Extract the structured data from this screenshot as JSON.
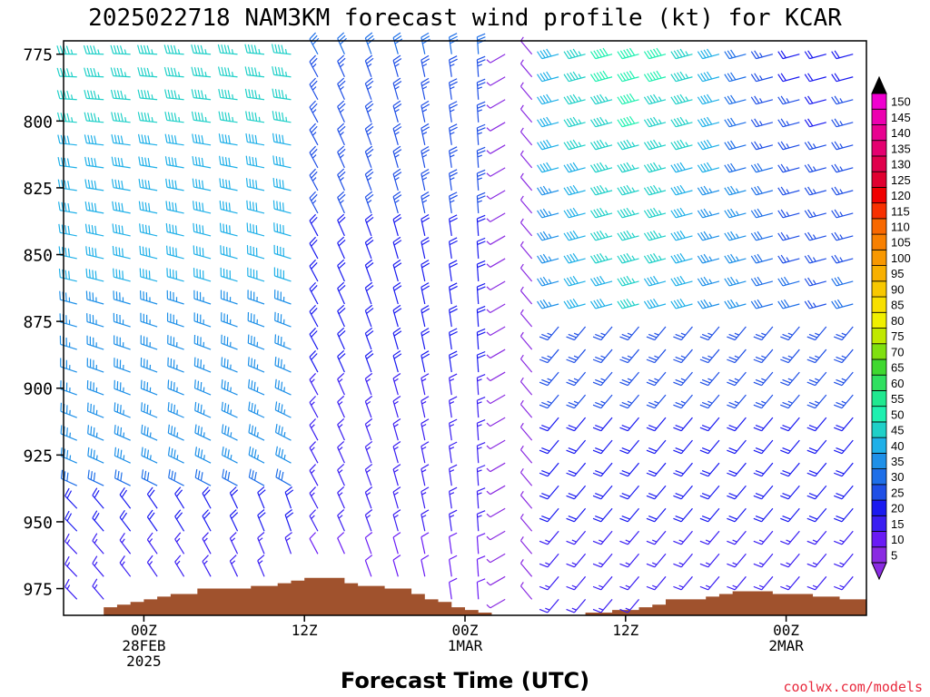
{
  "header": {
    "title": "2025022718 NAM3KM forecast wind profile (kt) for KCAR"
  },
  "footer": {
    "credit": "coolwx.com/models"
  },
  "chart_data": {
    "type": "wind-barb-time-height",
    "title": "2025022718 NAM3KM forecast wind profile (kt) for KCAR",
    "xlabel": "Forecast Time (UTC)",
    "ylabel": "",
    "pressure_levels_hPa": [
      775,
      800,
      825,
      850,
      875,
      900,
      925,
      950,
      975
    ],
    "ylim_hPa": [
      770,
      985
    ],
    "y_scale": "linear-inverted",
    "forecast_hours": [
      0,
      60
    ],
    "x_ticks": [
      {
        "hour": 6,
        "label": "00Z\n28FEB\n2025"
      },
      {
        "hour": 18,
        "label": "12Z"
      },
      {
        "hour": 30,
        "label": "00Z\n1MAR"
      },
      {
        "hour": 42,
        "label": "12Z"
      },
      {
        "hour": 54,
        "label": "00Z\n2MAR"
      }
    ],
    "colorbar": {
      "units": "kt",
      "levels": [
        5,
        10,
        15,
        20,
        25,
        30,
        35,
        40,
        45,
        50,
        55,
        60,
        65,
        70,
        75,
        80,
        85,
        90,
        95,
        100,
        105,
        110,
        115,
        120,
        125,
        130,
        135,
        140,
        145,
        150
      ],
      "colors": [
        "#8a2be2",
        "#6a1bf5",
        "#3a1ef2",
        "#1a1af0",
        "#1f4fe6",
        "#1e6fe8",
        "#1e90e8",
        "#1fb0e8",
        "#1fd0c8",
        "#1ff0b0",
        "#20e890",
        "#30e060",
        "#40d830",
        "#80e010",
        "#c0e800",
        "#f0f000",
        "#f8e000",
        "#f8c800",
        "#f8b000",
        "#f89800",
        "#f88000",
        "#f86800",
        "#f83000",
        "#f00000",
        "#e00030",
        "#e0004c",
        "#e40070",
        "#e80090",
        "#ec00b0",
        "#f000d0"
      ],
      "extends": "both"
    },
    "terrain_surface_pressure_hPa": [
      {
        "hour": 0,
        "p": 986
      },
      {
        "hour": 2,
        "p": 986
      },
      {
        "hour": 3,
        "p": 982
      },
      {
        "hour": 4,
        "p": 981
      },
      {
        "hour": 5,
        "p": 980
      },
      {
        "hour": 6,
        "p": 979
      },
      {
        "hour": 7,
        "p": 978
      },
      {
        "hour": 8,
        "p": 977
      },
      {
        "hour": 10,
        "p": 975
      },
      {
        "hour": 12,
        "p": 975
      },
      {
        "hour": 14,
        "p": 974
      },
      {
        "hour": 16,
        "p": 973
      },
      {
        "hour": 17,
        "p": 972
      },
      {
        "hour": 18,
        "p": 971
      },
      {
        "hour": 20,
        "p": 971
      },
      {
        "hour": 21,
        "p": 973
      },
      {
        "hour": 22,
        "p": 974
      },
      {
        "hour": 24,
        "p": 975
      },
      {
        "hour": 26,
        "p": 977
      },
      {
        "hour": 27,
        "p": 979
      },
      {
        "hour": 28,
        "p": 980
      },
      {
        "hour": 29,
        "p": 982
      },
      {
        "hour": 30,
        "p": 983
      },
      {
        "hour": 31,
        "p": 984
      },
      {
        "hour": 32,
        "p": 985
      },
      {
        "hour": 38,
        "p": 985
      },
      {
        "hour": 39,
        "p": 984
      },
      {
        "hour": 41,
        "p": 983
      },
      {
        "hour": 43,
        "p": 982
      },
      {
        "hour": 44,
        "p": 981
      },
      {
        "hour": 45,
        "p": 979
      },
      {
        "hour": 48,
        "p": 978
      },
      {
        "hour": 49,
        "p": 977
      },
      {
        "hour": 50,
        "p": 976
      },
      {
        "hour": 52,
        "p": 976
      },
      {
        "hour": 53,
        "p": 977
      },
      {
        "hour": 55,
        "p": 977
      },
      {
        "hour": 56,
        "p": 978
      },
      {
        "hour": 58,
        "p": 979
      },
      {
        "hour": 60,
        "p": 980
      }
    ],
    "wind_regimes": [
      {
        "hours": [
          0,
          18
        ],
        "levels_hPa": [
          770,
          940
        ],
        "direction": "W to WNW",
        "speed_kt": [
          30,
          45
        ]
      },
      {
        "hours": [
          18,
          33
        ],
        "levels_hPa": [
          770,
          985
        ],
        "direction": "NW to N",
        "speed_kt": [
          5,
          30
        ]
      },
      {
        "hours": [
          33,
          36
        ],
        "levels_hPa": [
          770,
          985
        ],
        "direction": "variable",
        "speed_kt": [
          5,
          10
        ]
      },
      {
        "hours": [
          36,
          50
        ],
        "levels_hPa": [
          770,
          870
        ],
        "direction": "WSW to W",
        "speed_kt": [
          35,
          50
        ]
      },
      {
        "hours": [
          36,
          60
        ],
        "levels_hPa": [
          870,
          985
        ],
        "direction": "SW to S",
        "speed_kt": [
          10,
          30
        ]
      }
    ]
  }
}
